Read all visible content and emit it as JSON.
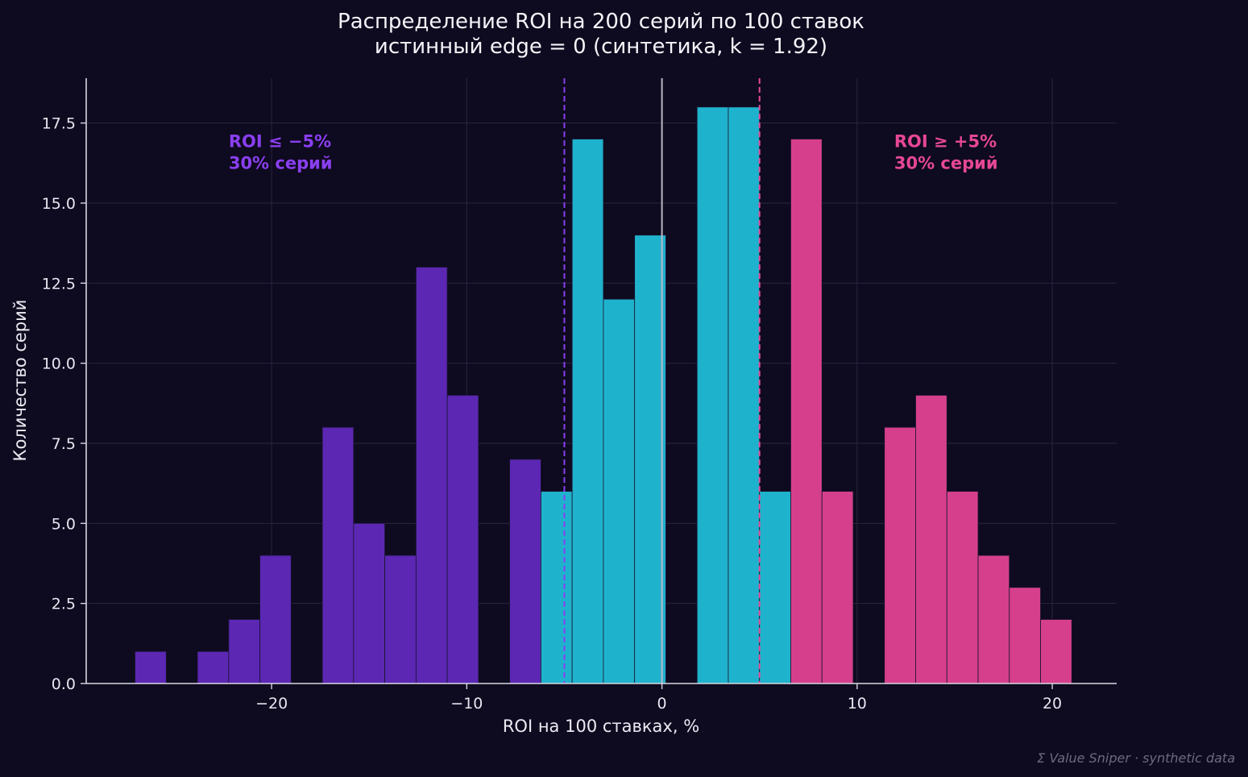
{
  "chart_data": {
    "type": "bar",
    "title": "Распределение ROI на 200 серий по 100 ставок",
    "subtitle": "истинный edge = 0 (синтетика, k = 1.92)",
    "xlabel": "ROI на 100 ставках, %",
    "ylabel": "Количество серий",
    "xlim": [
      -29.5,
      23.3
    ],
    "ylim": [
      0,
      18.9
    ],
    "xticks": [
      -20,
      -10,
      0,
      10,
      20
    ],
    "xtick_labels": [
      "−20",
      "−10",
      "0",
      "10",
      "20"
    ],
    "yticks": [
      0,
      2.5,
      5,
      7.5,
      10,
      12.5,
      15,
      17.5
    ],
    "ytick_labels": [
      "0.0",
      "2.5",
      "5.0",
      "7.5",
      "10.0",
      "12.5",
      "15.0",
      "17.5"
    ],
    "grid": true,
    "bin_width": 1.6,
    "bins": [
      {
        "x0": -27.0,
        "x1": -25.4,
        "count": 1,
        "group": "low"
      },
      {
        "x0": -23.8,
        "x1": -22.2,
        "count": 1,
        "group": "low"
      },
      {
        "x0": -22.2,
        "x1": -20.6,
        "count": 2,
        "group": "low"
      },
      {
        "x0": -20.6,
        "x1": -19.0,
        "count": 4,
        "group": "low"
      },
      {
        "x0": -17.4,
        "x1": -15.8,
        "count": 8,
        "group": "low"
      },
      {
        "x0": -15.8,
        "x1": -14.2,
        "count": 5,
        "group": "low"
      },
      {
        "x0": -14.2,
        "x1": -12.6,
        "count": 4,
        "group": "low"
      },
      {
        "x0": -12.6,
        "x1": -11.0,
        "count": 13,
        "group": "low"
      },
      {
        "x0": -11.0,
        "x1": -9.4,
        "count": 9,
        "group": "low"
      },
      {
        "x0": -7.8,
        "x1": -6.2,
        "count": 7,
        "group": "low"
      },
      {
        "x0": -6.2,
        "x1": -4.6,
        "count": 6,
        "group": "mid"
      },
      {
        "x0": -4.6,
        "x1": -3.0,
        "count": 17,
        "group": "mid"
      },
      {
        "x0": -3.0,
        "x1": -1.4,
        "count": 12,
        "group": "mid"
      },
      {
        "x0": -1.4,
        "x1": 0.2,
        "count": 14,
        "group": "mid"
      },
      {
        "x0": 1.8,
        "x1": 3.4,
        "count": 18,
        "group": "mid"
      },
      {
        "x0": 3.4,
        "x1": 5.0,
        "count": 18,
        "group": "mid"
      },
      {
        "x0": 5.0,
        "x1": 6.6,
        "count": 6,
        "group": "mid"
      },
      {
        "x0": 6.6,
        "x1": 8.2,
        "count": 17,
        "group": "high"
      },
      {
        "x0": 8.2,
        "x1": 9.8,
        "count": 6,
        "group": "high"
      },
      {
        "x0": 11.4,
        "x1": 13.0,
        "count": 8,
        "group": "high"
      },
      {
        "x0": 13.0,
        "x1": 14.6,
        "count": 9,
        "group": "high"
      },
      {
        "x0": 14.6,
        "x1": 16.2,
        "count": 6,
        "group": "high"
      },
      {
        "x0": 16.2,
        "x1": 17.8,
        "count": 4,
        "group": "high"
      },
      {
        "x0": 17.8,
        "x1": 19.4,
        "count": 3,
        "group": "high"
      },
      {
        "x0": 19.4,
        "x1": 21.0,
        "count": 2,
        "group": "high"
      }
    ],
    "colors": {
      "low": "#5b27b3",
      "mid": "#1fb2cd",
      "high": "#d63f8c",
      "low_text": "#8a3ff0",
      "high_text": "#e64796",
      "zero_line": "#b9b6c6",
      "grid": "#2a2540",
      "axis": "#d8d6e2",
      "bar_edge": "#1a1530"
    },
    "vlines": [
      {
        "x": -5,
        "style": "dashed",
        "color": "#8a3ff0"
      },
      {
        "x": 0,
        "style": "solid",
        "color": "#b9b6c6"
      },
      {
        "x": 5,
        "style": "dashed",
        "color": "#e64796"
      }
    ],
    "annotations": [
      {
        "line1": "ROI ≤ −5%",
        "line2": "30% серий",
        "x": -22.2,
        "y": 16.75,
        "color": "#8a3ff0"
      },
      {
        "line1": "ROI ≥ +5%",
        "line2": "30% серий",
        "x": 11.9,
        "y": 16.75,
        "color": "#e64796"
      }
    ],
    "watermark": "Σ Value Sniper · synthetic data"
  }
}
